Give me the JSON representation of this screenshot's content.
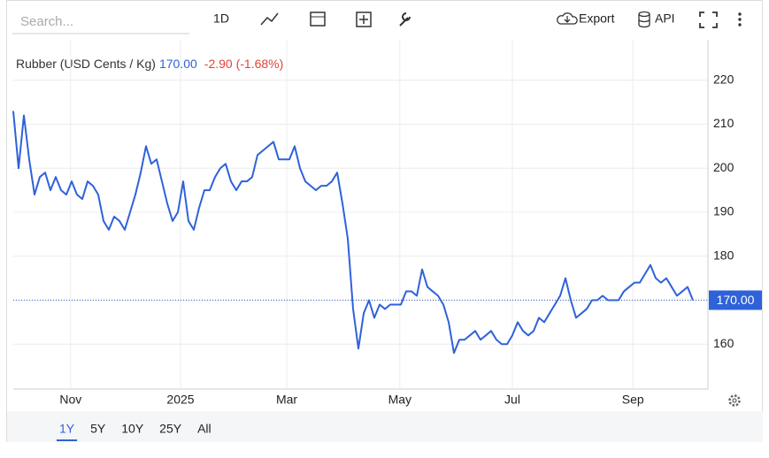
{
  "toolbar": {
    "search_placeholder": "Search...",
    "interval": "1D",
    "export": "Export",
    "api": "API"
  },
  "ranges": [
    "1Y",
    "5Y",
    "10Y",
    "25Y",
    "All"
  ],
  "chart_data": {
    "type": "line",
    "title": "Rubber (USD Cents / Kg)",
    "last_price": "170.00",
    "change": "-2.90 (-1.68%)",
    "series": [
      {
        "name": "Rubber (USD Cents / Kg)",
        "color": "#2f62d9",
        "values": [
          213,
          200,
          212,
          202,
          194,
          198,
          199,
          195,
          198,
          195,
          194,
          197,
          194,
          193,
          197,
          196,
          194,
          188,
          186,
          189,
          188,
          186,
          190,
          194,
          199,
          205,
          201,
          202,
          197,
          192,
          188,
          190,
          197,
          188,
          186,
          191,
          195,
          195,
          198,
          200,
          201,
          197,
          195,
          197,
          197,
          198,
          203,
          204,
          205,
          206,
          202,
          202,
          202,
          205,
          200,
          197,
          196,
          195,
          196,
          196,
          197,
          199,
          192,
          184,
          168,
          159,
          167,
          170,
          166,
          169,
          168,
          169,
          169,
          169,
          172,
          172,
          171,
          177,
          173,
          172,
          171,
          169,
          165,
          158,
          161,
          161,
          162,
          163,
          161,
          162,
          163,
          161,
          160,
          160,
          162,
          165,
          163,
          162,
          163,
          166,
          165,
          167,
          169,
          171,
          175,
          170,
          166,
          167,
          168,
          170,
          170,
          171,
          170,
          170,
          170,
          172,
          173,
          174,
          174,
          176,
          178,
          175,
          174,
          175,
          173,
          171,
          172,
          173,
          170
        ]
      }
    ],
    "xlim": [
      0,
      128
    ],
    "xticks": [
      {
        "value": 10.8,
        "label": "Nov"
      },
      {
        "value": 31.5,
        "label": "2025"
      },
      {
        "value": 51.5,
        "label": "Mar"
      },
      {
        "value": 72.8,
        "label": "May"
      },
      {
        "value": 94,
        "label": "Jul"
      },
      {
        "value": 116.7,
        "label": "Sep"
      }
    ],
    "ylim": [
      150,
      230
    ],
    "yticks": [
      160,
      170,
      180,
      190,
      200,
      210,
      220
    ],
    "grid": true
  }
}
